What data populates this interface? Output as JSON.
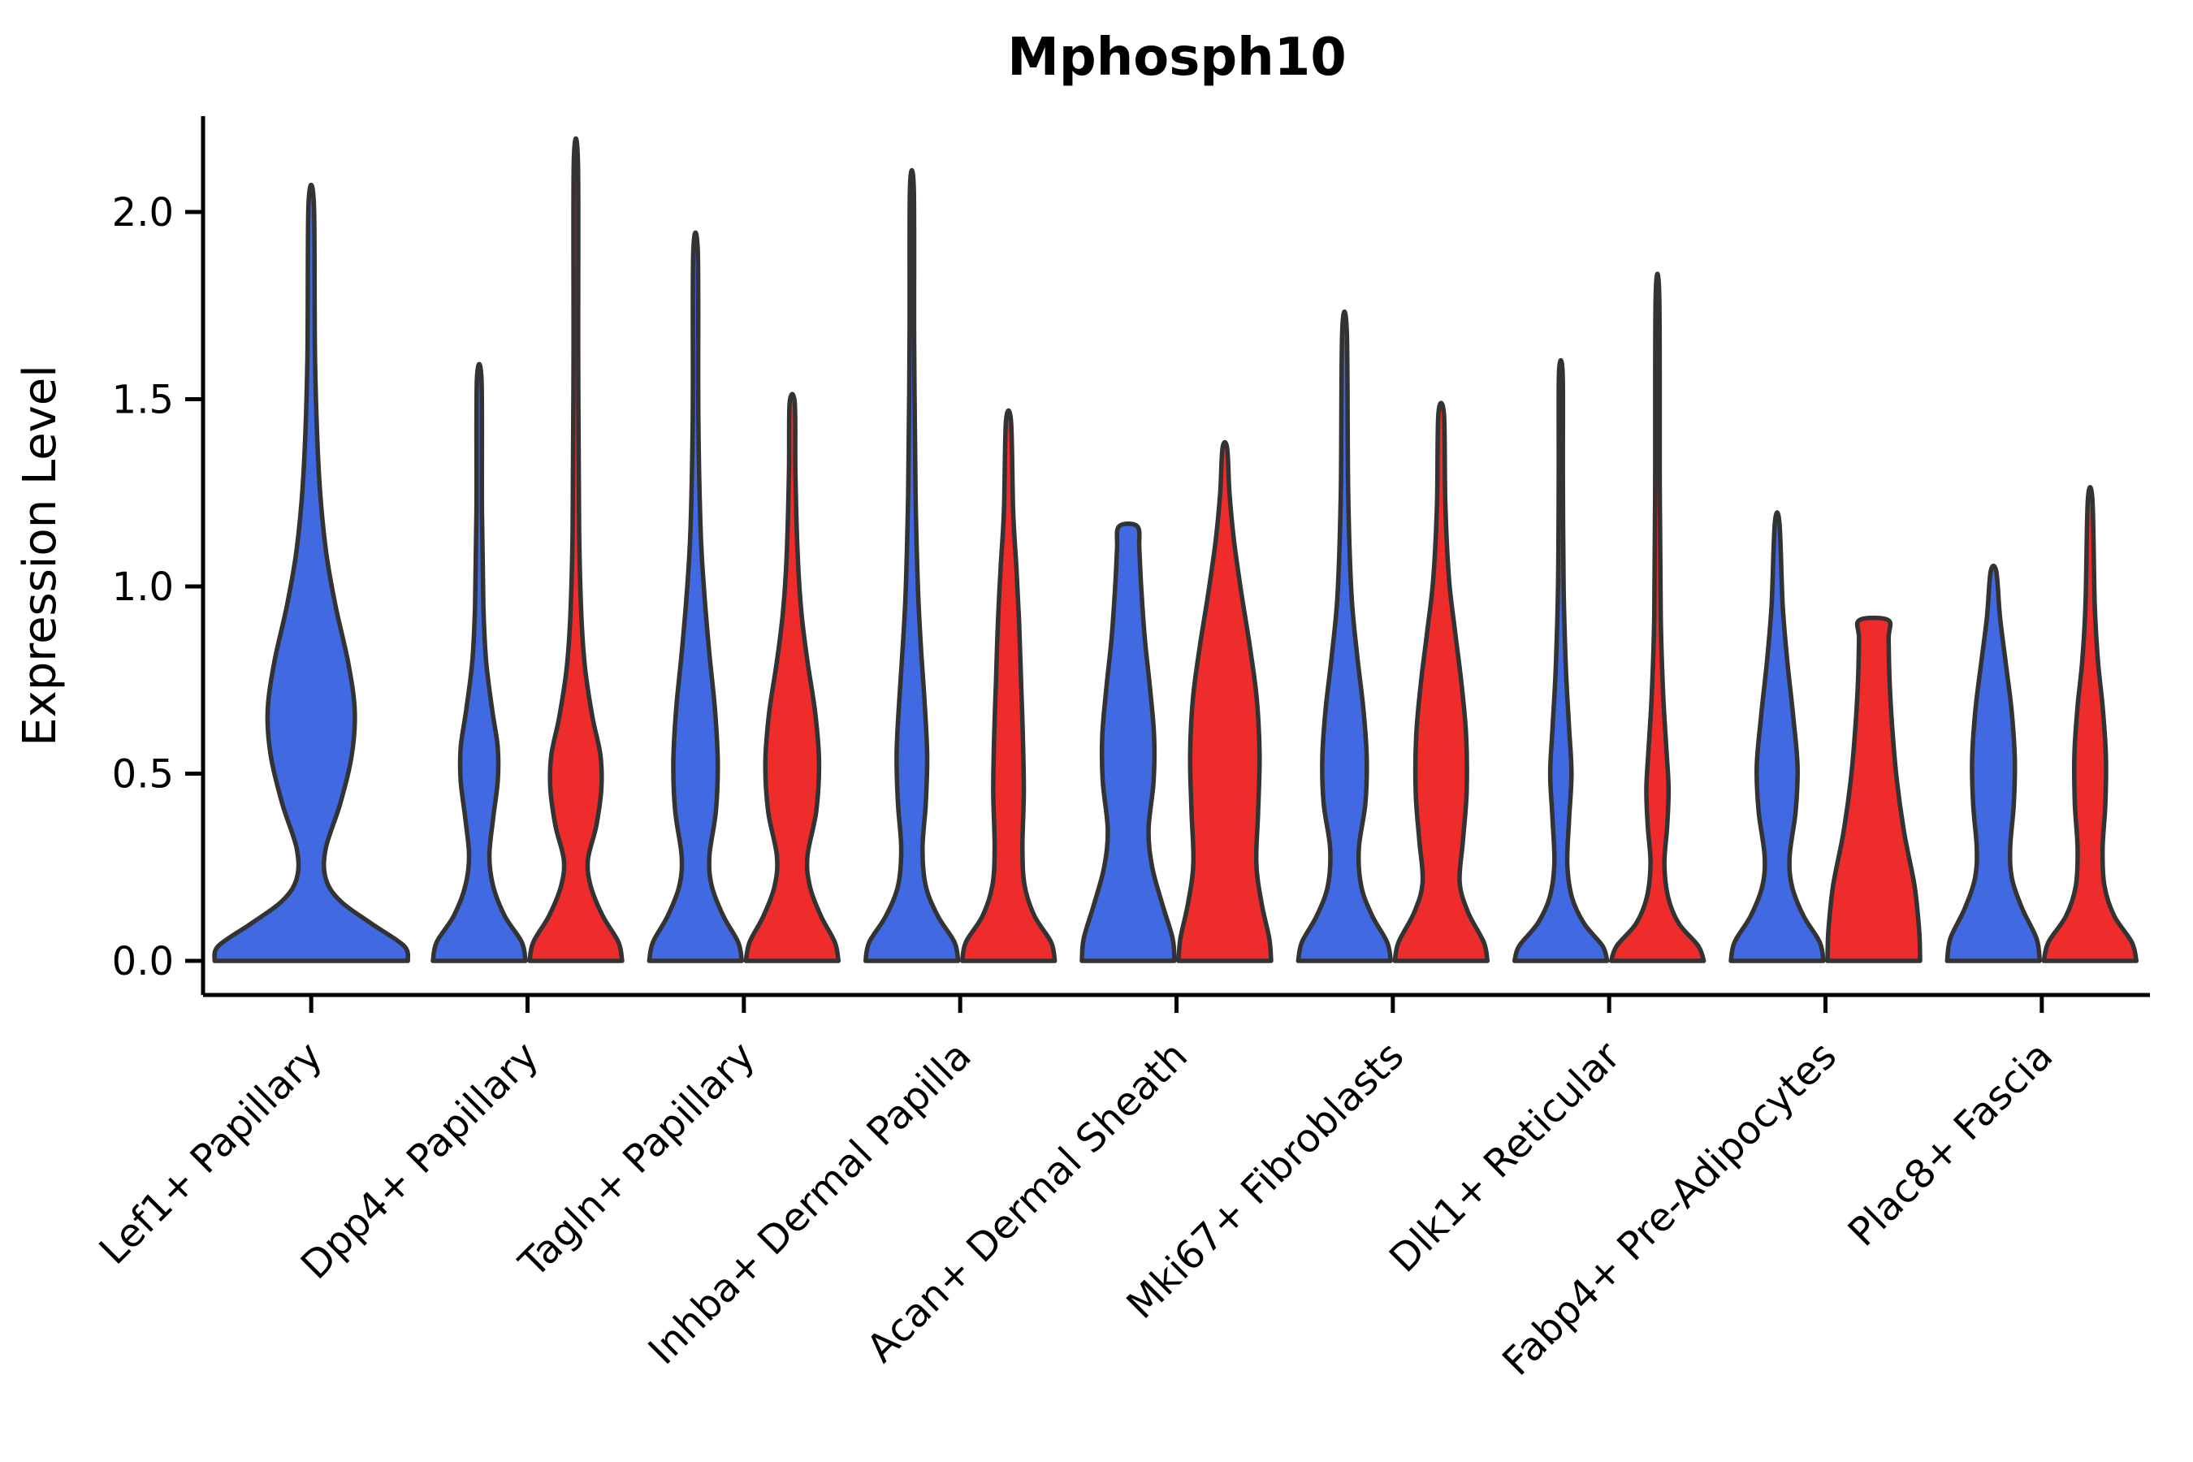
{
  "figure": {
    "title": "Mphosph10",
    "ylabel": "Expression Level",
    "xlabel": ""
  },
  "colors": {
    "blue": "#4169E1",
    "red": "#EE2C2C",
    "edge": "#333333",
    "axis": "#000000",
    "background": "#FFFFFF"
  },
  "chart_data": {
    "type": "violin",
    "title": "Mphosph10",
    "xlabel": "",
    "ylabel": "Expression Level",
    "ylim": [
      -0.09,
      2.26
    ],
    "y_ticks": [
      0,
      0.5,
      1,
      1.5,
      2
    ],
    "y_tick_labels": [
      "0.0",
      "0.5",
      "1.0",
      "1.5",
      "2.0"
    ],
    "grid": false,
    "legend": "none",
    "categories": [
      "Lef1+ Papillary",
      "Dpp4+ Papillary",
      "Tagln+ Papillary",
      "Inhba+ Dermal Papilla",
      "Acan+ Dermal Sheath",
      "Mki67+ Fibroblasts",
      "Dlk1+ Reticular",
      "Fabp4+ Pre-Adipocytes",
      "Plac8+ Fascia"
    ],
    "series": [
      {
        "name": "blue",
        "color": "#4169E1"
      },
      {
        "name": "red",
        "color": "#EE2C2C"
      }
    ],
    "violins": [
      {
        "category": "Lef1+ Papillary",
        "series": "blue",
        "position": "center",
        "max": 2.02,
        "profile": [
          [
            0,
            1.0
          ],
          [
            0.04,
            0.96
          ],
          [
            0.1,
            0.62
          ],
          [
            0.16,
            0.3
          ],
          [
            0.22,
            0.15
          ],
          [
            0.3,
            0.15
          ],
          [
            0.42,
            0.3
          ],
          [
            0.55,
            0.42
          ],
          [
            0.67,
            0.45
          ],
          [
            0.8,
            0.38
          ],
          [
            0.95,
            0.25
          ],
          [
            1.1,
            0.15
          ],
          [
            1.3,
            0.08
          ],
          [
            1.6,
            0.04
          ],
          [
            2.02,
            0.028
          ]
        ]
      },
      {
        "category": "Dpp4+ Papillary",
        "series": "blue",
        "position": "left",
        "max": 1.55,
        "profile": [
          [
            0,
            1.0
          ],
          [
            0.05,
            0.92
          ],
          [
            0.12,
            0.55
          ],
          [
            0.2,
            0.3
          ],
          [
            0.28,
            0.22
          ],
          [
            0.38,
            0.3
          ],
          [
            0.48,
            0.4
          ],
          [
            0.57,
            0.4
          ],
          [
            0.67,
            0.28
          ],
          [
            0.8,
            0.15
          ],
          [
            0.95,
            0.09
          ],
          [
            1.2,
            0.06
          ],
          [
            1.55,
            0.05
          ]
        ]
      },
      {
        "category": "Dpp4+ Papillary",
        "series": "red",
        "position": "right",
        "max": 2.13,
        "profile": [
          [
            0,
            1.0
          ],
          [
            0.05,
            0.92
          ],
          [
            0.12,
            0.58
          ],
          [
            0.2,
            0.32
          ],
          [
            0.27,
            0.26
          ],
          [
            0.36,
            0.44
          ],
          [
            0.46,
            0.55
          ],
          [
            0.55,
            0.53
          ],
          [
            0.65,
            0.36
          ],
          [
            0.78,
            0.2
          ],
          [
            0.92,
            0.12
          ],
          [
            1.15,
            0.07
          ],
          [
            1.6,
            0.05
          ],
          [
            2.13,
            0.045
          ]
        ]
      },
      {
        "category": "Tagln+ Papillary",
        "series": "blue",
        "position": "left",
        "max": 1.89,
        "profile": [
          [
            0,
            1.0
          ],
          [
            0.05,
            0.92
          ],
          [
            0.12,
            0.6
          ],
          [
            0.2,
            0.35
          ],
          [
            0.28,
            0.3
          ],
          [
            0.4,
            0.44
          ],
          [
            0.53,
            0.48
          ],
          [
            0.67,
            0.42
          ],
          [
            0.82,
            0.3
          ],
          [
            0.98,
            0.19
          ],
          [
            1.15,
            0.11
          ],
          [
            1.45,
            0.06
          ],
          [
            1.89,
            0.05
          ]
        ]
      },
      {
        "category": "Tagln+ Papillary",
        "series": "red",
        "position": "right",
        "max": 1.49,
        "profile": [
          [
            0,
            1.0
          ],
          [
            0.05,
            0.92
          ],
          [
            0.12,
            0.62
          ],
          [
            0.2,
            0.38
          ],
          [
            0.28,
            0.33
          ],
          [
            0.4,
            0.52
          ],
          [
            0.53,
            0.58
          ],
          [
            0.66,
            0.5
          ],
          [
            0.8,
            0.33
          ],
          [
            0.93,
            0.2
          ],
          [
            1.08,
            0.12
          ],
          [
            1.3,
            0.07
          ],
          [
            1.49,
            0.055
          ]
        ]
      },
      {
        "category": "Inhba+ Dermal Papilla",
        "series": "blue",
        "position": "left",
        "max": 2.06,
        "profile": [
          [
            0,
            1.0
          ],
          [
            0.05,
            0.92
          ],
          [
            0.12,
            0.56
          ],
          [
            0.2,
            0.3
          ],
          [
            0.3,
            0.23
          ],
          [
            0.42,
            0.3
          ],
          [
            0.55,
            0.33
          ],
          [
            0.7,
            0.27
          ],
          [
            0.85,
            0.19
          ],
          [
            1.0,
            0.13
          ],
          [
            1.25,
            0.08
          ],
          [
            1.65,
            0.05
          ],
          [
            2.06,
            0.042
          ]
        ]
      },
      {
        "category": "Inhba+ Dermal Papilla",
        "series": "red",
        "position": "right",
        "max": 1.44,
        "profile": [
          [
            0,
            1.0
          ],
          [
            0.05,
            0.92
          ],
          [
            0.12,
            0.56
          ],
          [
            0.2,
            0.35
          ],
          [
            0.3,
            0.3
          ],
          [
            0.45,
            0.33
          ],
          [
            0.6,
            0.31
          ],
          [
            0.75,
            0.27
          ],
          [
            0.9,
            0.23
          ],
          [
            1.05,
            0.17
          ],
          [
            1.2,
            0.1
          ],
          [
            1.44,
            0.055
          ]
        ]
      },
      {
        "category": "Acan+ Dermal Sheath",
        "series": "blue",
        "position": "left",
        "max": 1.16,
        "profile": [
          [
            0,
            1.0
          ],
          [
            0.06,
            0.96
          ],
          [
            0.15,
            0.74
          ],
          [
            0.25,
            0.52
          ],
          [
            0.35,
            0.44
          ],
          [
            0.48,
            0.55
          ],
          [
            0.6,
            0.56
          ],
          [
            0.73,
            0.47
          ],
          [
            0.86,
            0.36
          ],
          [
            1.0,
            0.28
          ],
          [
            1.1,
            0.24
          ],
          [
            1.16,
            0.2
          ]
        ]
      },
      {
        "category": "Acan+ Dermal Sheath",
        "series": "red",
        "position": "right",
        "max": 1.37,
        "profile": [
          [
            0,
            1.0
          ],
          [
            0.06,
            0.96
          ],
          [
            0.15,
            0.8
          ],
          [
            0.26,
            0.68
          ],
          [
            0.4,
            0.72
          ],
          [
            0.55,
            0.75
          ],
          [
            0.7,
            0.69
          ],
          [
            0.84,
            0.54
          ],
          [
            0.98,
            0.36
          ],
          [
            1.12,
            0.2
          ],
          [
            1.25,
            0.1
          ],
          [
            1.37,
            0.05
          ]
        ]
      },
      {
        "category": "Mki67+ Fibroblasts",
        "series": "blue",
        "position": "left",
        "max": 1.68,
        "profile": [
          [
            0,
            1.0
          ],
          [
            0.05,
            0.92
          ],
          [
            0.12,
            0.6
          ],
          [
            0.2,
            0.36
          ],
          [
            0.3,
            0.31
          ],
          [
            0.42,
            0.45
          ],
          [
            0.54,
            0.48
          ],
          [
            0.67,
            0.41
          ],
          [
            0.82,
            0.27
          ],
          [
            0.98,
            0.15
          ],
          [
            1.25,
            0.08
          ],
          [
            1.68,
            0.05
          ]
        ]
      },
      {
        "category": "Mki67+ Fibroblasts",
        "series": "red",
        "position": "right",
        "max": 1.46,
        "profile": [
          [
            0,
            1.0
          ],
          [
            0.05,
            0.92
          ],
          [
            0.13,
            0.58
          ],
          [
            0.21,
            0.4
          ],
          [
            0.32,
            0.47
          ],
          [
            0.45,
            0.55
          ],
          [
            0.6,
            0.54
          ],
          [
            0.74,
            0.44
          ],
          [
            0.88,
            0.3
          ],
          [
            1.02,
            0.17
          ],
          [
            1.22,
            0.09
          ],
          [
            1.46,
            0.06
          ]
        ]
      },
      {
        "category": "Dlk1+ Reticular",
        "series": "blue",
        "position": "left",
        "max": 1.57,
        "profile": [
          [
            0,
            1.0
          ],
          [
            0.04,
            0.9
          ],
          [
            0.1,
            0.5
          ],
          [
            0.17,
            0.24
          ],
          [
            0.26,
            0.14
          ],
          [
            0.38,
            0.18
          ],
          [
            0.5,
            0.23
          ],
          [
            0.62,
            0.18
          ],
          [
            0.78,
            0.11
          ],
          [
            1.0,
            0.06
          ],
          [
            1.3,
            0.045
          ],
          [
            1.57,
            0.04
          ]
        ]
      },
      {
        "category": "Dlk1+ Reticular",
        "series": "red",
        "position": "right",
        "max": 1.77,
        "profile": [
          [
            0,
            1.0
          ],
          [
            0.04,
            0.88
          ],
          [
            0.1,
            0.46
          ],
          [
            0.17,
            0.23
          ],
          [
            0.26,
            0.15
          ],
          [
            0.36,
            0.21
          ],
          [
            0.46,
            0.24
          ],
          [
            0.57,
            0.19
          ],
          [
            0.72,
            0.12
          ],
          [
            0.92,
            0.07
          ],
          [
            1.25,
            0.05
          ],
          [
            1.77,
            0.04
          ]
        ]
      },
      {
        "category": "Fabp4+ Pre-Adipocytes",
        "series": "blue",
        "position": "left",
        "max": 1.17,
        "profile": [
          [
            0,
            1.0
          ],
          [
            0.05,
            0.92
          ],
          [
            0.12,
            0.57
          ],
          [
            0.2,
            0.32
          ],
          [
            0.28,
            0.27
          ],
          [
            0.4,
            0.4
          ],
          [
            0.52,
            0.44
          ],
          [
            0.65,
            0.35
          ],
          [
            0.8,
            0.22
          ],
          [
            0.95,
            0.12
          ],
          [
            1.17,
            0.05
          ]
        ]
      },
      {
        "category": "Fabp4+ Pre-Adipocytes",
        "series": "red",
        "position": "right",
        "max": 0.91,
        "profile": [
          [
            0,
            1.0
          ],
          [
            0.08,
            0.98
          ],
          [
            0.2,
            0.88
          ],
          [
            0.34,
            0.66
          ],
          [
            0.48,
            0.5
          ],
          [
            0.62,
            0.4
          ],
          [
            0.75,
            0.34
          ],
          [
            0.86,
            0.32
          ],
          [
            0.91,
            0.31
          ]
        ]
      },
      {
        "category": "Plac8+ Fascia",
        "series": "blue",
        "position": "left",
        "max": 1.04,
        "profile": [
          [
            0,
            1.0
          ],
          [
            0.06,
            0.93
          ],
          [
            0.14,
            0.62
          ],
          [
            0.22,
            0.4
          ],
          [
            0.3,
            0.36
          ],
          [
            0.42,
            0.44
          ],
          [
            0.54,
            0.46
          ],
          [
            0.67,
            0.39
          ],
          [
            0.8,
            0.26
          ],
          [
            0.92,
            0.14
          ],
          [
            1.04,
            0.06
          ]
        ]
      },
      {
        "category": "Plac8+ Fascia",
        "series": "red",
        "position": "right",
        "max": 1.23,
        "profile": [
          [
            0,
            1.0
          ],
          [
            0.05,
            0.9
          ],
          [
            0.12,
            0.52
          ],
          [
            0.2,
            0.31
          ],
          [
            0.3,
            0.27
          ],
          [
            0.42,
            0.33
          ],
          [
            0.55,
            0.34
          ],
          [
            0.68,
            0.27
          ],
          [
            0.8,
            0.17
          ],
          [
            0.95,
            0.1
          ],
          [
            1.23,
            0.05
          ]
        ]
      }
    ]
  }
}
